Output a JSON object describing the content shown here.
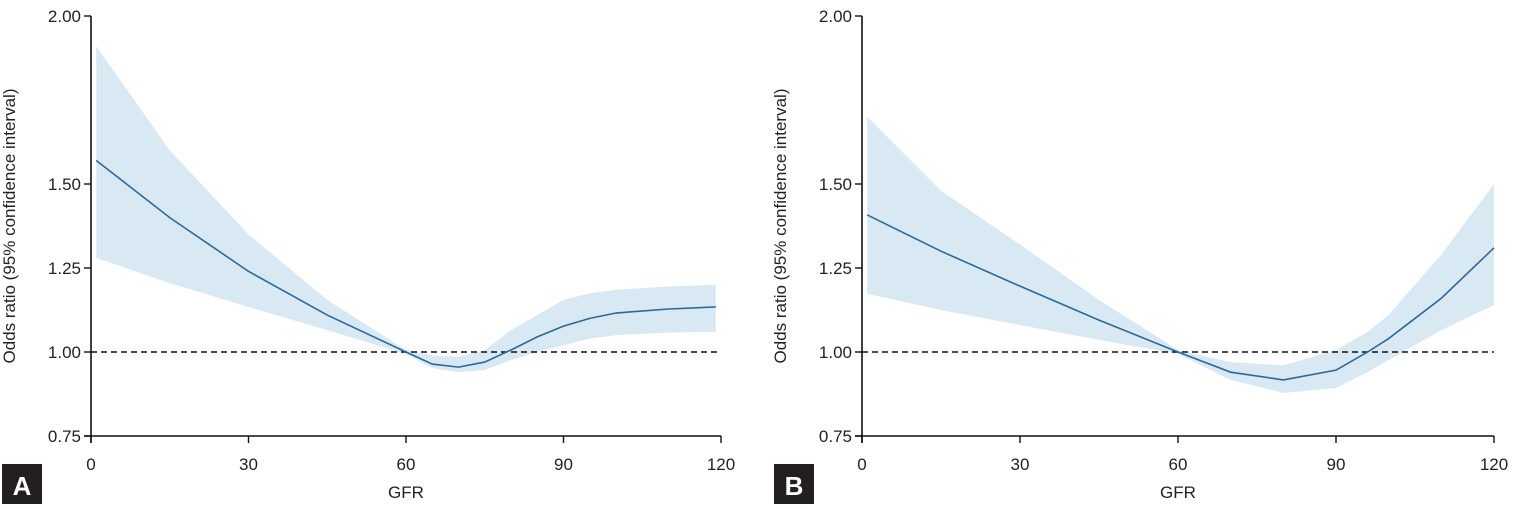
{
  "chart_data": [
    {
      "type": "line",
      "panel_label": "A",
      "xlabel": "GFR",
      "ylabel": "Odds ratio (95% confidence interval)",
      "xlim": [
        0,
        120
      ],
      "ylim": [
        0.75,
        2.0
      ],
      "xticks": [
        "0",
        "30",
        "60",
        "90",
        "120"
      ],
      "yticks": [
        "0.75",
        "1.00",
        "1.25",
        "1.50",
        "2.00"
      ],
      "reference_line": 1.0,
      "grid": false,
      "line_color": "#2a6a9a",
      "band_color": "#d9e9f4",
      "x": [
        1,
        15,
        30,
        45,
        60,
        65,
        70,
        75,
        80,
        85,
        90,
        95,
        100,
        110,
        119
      ],
      "y": [
        1.57,
        1.4,
        1.24,
        1.11,
        1.0,
        0.964,
        0.955,
        0.97,
        1.006,
        1.045,
        1.077,
        1.1,
        1.116,
        1.128,
        1.134
      ],
      "upper": [
        1.91,
        1.6,
        1.35,
        1.155,
        1.006,
        0.99,
        0.985,
        1.006,
        1.065,
        1.11,
        1.155,
        1.175,
        1.185,
        1.195,
        1.2
      ],
      "lower": [
        1.28,
        1.205,
        1.134,
        1.065,
        0.994,
        0.952,
        0.94,
        0.946,
        0.976,
        1.0,
        1.02,
        1.04,
        1.05,
        1.058,
        1.06
      ]
    },
    {
      "type": "line",
      "panel_label": "B",
      "xlabel": "GFR",
      "ylabel": "Odds ratio (95% confidence interval)",
      "xlim": [
        0,
        120
      ],
      "ylim": [
        0.75,
        2.0
      ],
      "xticks": [
        "0",
        "30",
        "60",
        "90",
        "120"
      ],
      "yticks": [
        "0.75",
        "1.00",
        "1.25",
        "1.50",
        "2.00"
      ],
      "reference_line": 1.0,
      "grid": false,
      "line_color": "#2a6a9a",
      "band_color": "#d9e9f4",
      "x": [
        1,
        15,
        30,
        45,
        60,
        70,
        80,
        90,
        96,
        100,
        110,
        120
      ],
      "y": [
        1.408,
        1.3,
        1.196,
        1.095,
        1.0,
        0.94,
        0.917,
        0.946,
        1.0,
        1.04,
        1.16,
        1.31
      ],
      "upper": [
        1.7,
        1.48,
        1.32,
        1.155,
        1.006,
        0.97,
        0.96,
        1.006,
        1.06,
        1.11,
        1.29,
        1.5
      ],
      "lower": [
        1.173,
        1.125,
        1.08,
        1.036,
        0.994,
        0.917,
        0.878,
        0.893,
        0.94,
        0.976,
        1.065,
        1.14
      ]
    }
  ]
}
